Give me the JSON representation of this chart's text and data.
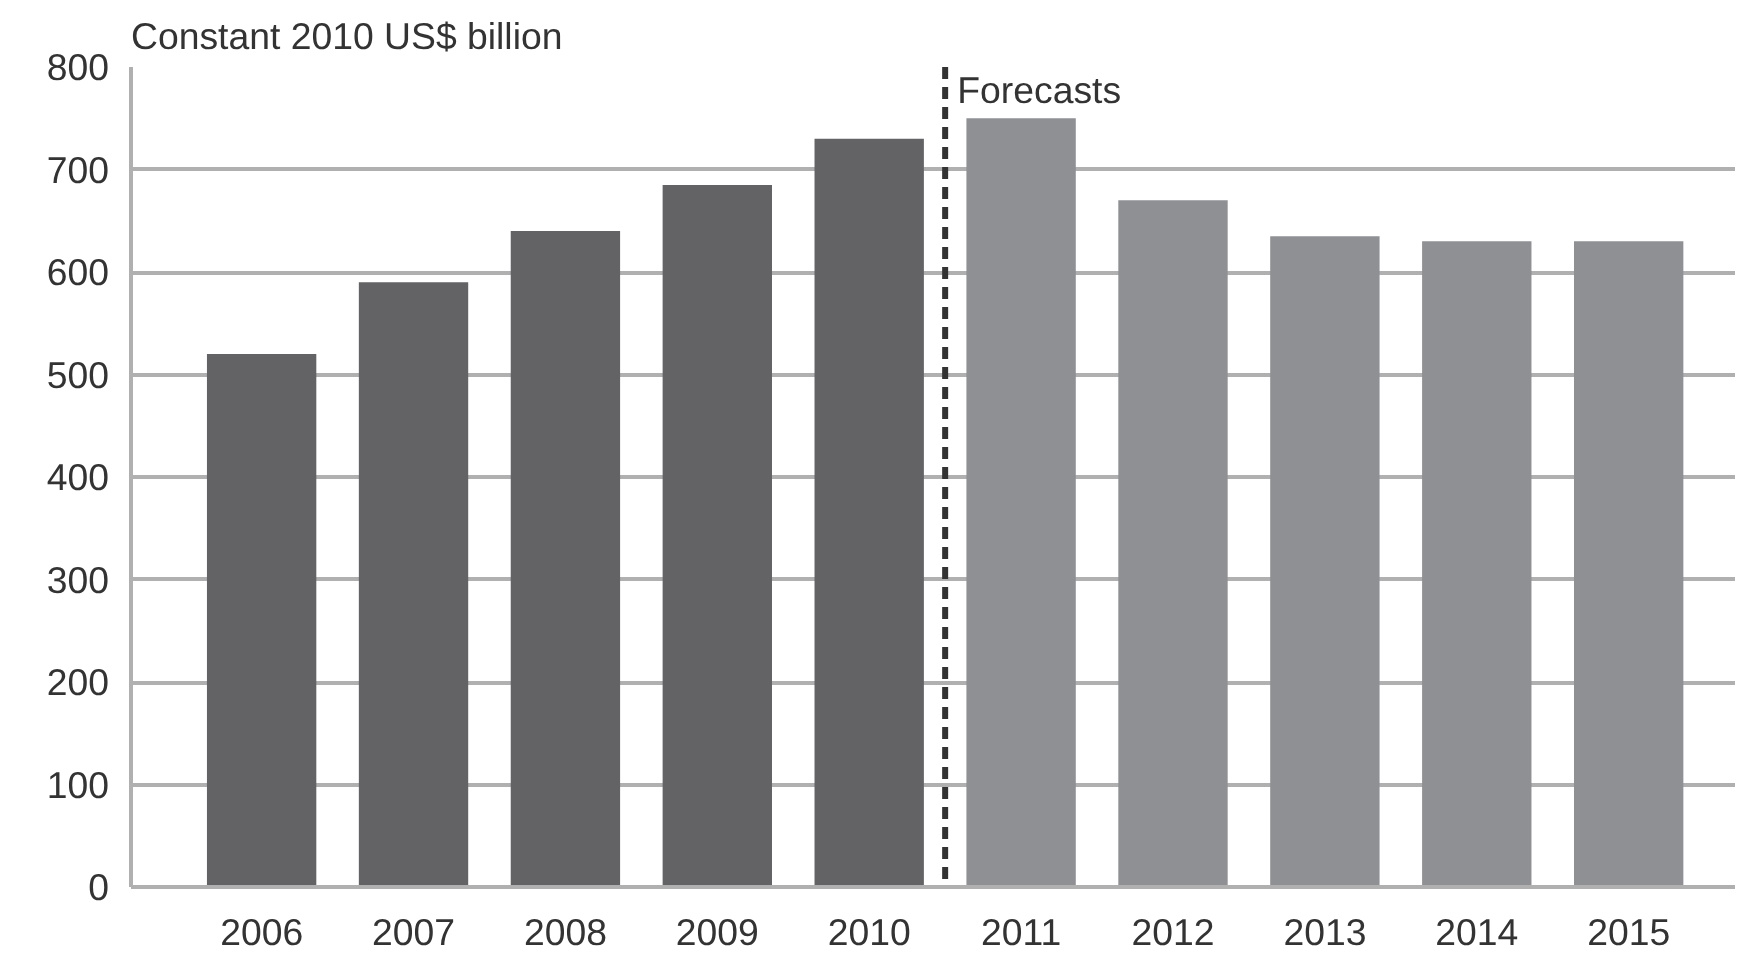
{
  "chart_data": {
    "type": "bar",
    "title": "Constant 2010 US$ billion",
    "categories": [
      "2006",
      "2007",
      "2008",
      "2009",
      "2010",
      "2011",
      "2012",
      "2013",
      "2014",
      "2015"
    ],
    "values": [
      520,
      590,
      640,
      685,
      730,
      750,
      670,
      635,
      630,
      630
    ],
    "colors": [
      "#636365",
      "#636365",
      "#636365",
      "#636365",
      "#636365",
      "#8f9094",
      "#8f9094",
      "#8f9094",
      "#8f9094",
      "#8f9094"
    ],
    "ylim": [
      0,
      800
    ],
    "yticks": [
      0,
      100,
      200,
      300,
      400,
      500,
      600,
      700,
      800
    ],
    "grid": "y",
    "ref_lines": [
      {
        "axis": "x",
        "value": "2011",
        "label": "Forecasts",
        "line_style": "dashed",
        "color": "#333333"
      }
    ]
  }
}
